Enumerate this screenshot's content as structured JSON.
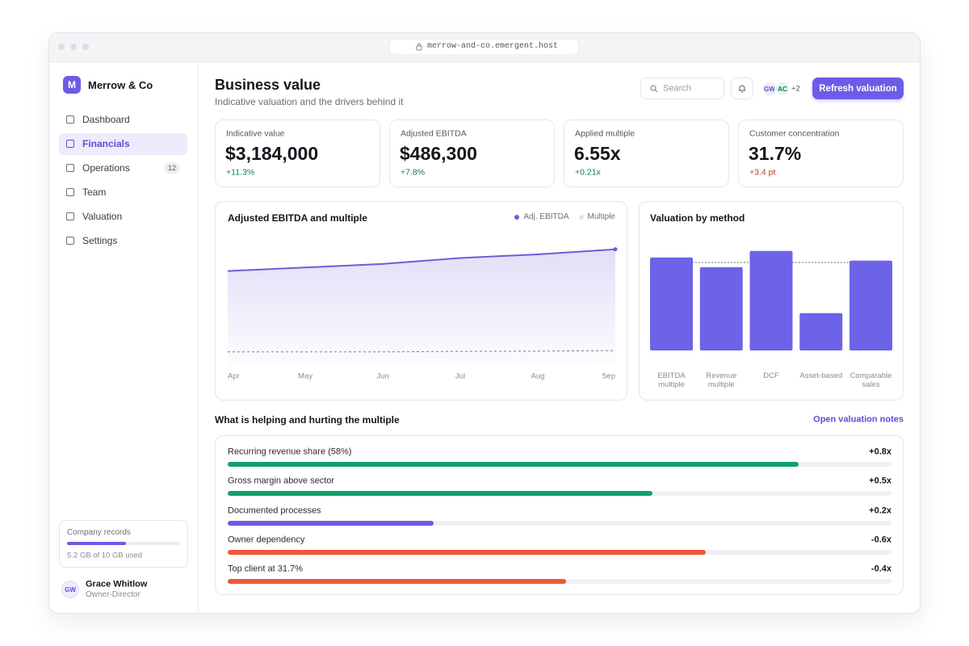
{
  "browser": {
    "url": "merrow-and-co.emergent.host"
  },
  "sidebar": {
    "brand_initial": "M",
    "brand": "Merrow & Co",
    "nav": [
      {
        "label": "Dashboard"
      },
      {
        "label": "Financials",
        "active": true
      },
      {
        "label": "Operations",
        "badge": "12"
      },
      {
        "label": "Team"
      },
      {
        "label": "Valuation"
      },
      {
        "label": "Settings"
      }
    ],
    "storage": {
      "title": "Company records",
      "used": 5.2,
      "total": 10,
      "color": "#6b5ce7",
      "caption": "5.2 GB of 10 GB used"
    },
    "user": {
      "initials": "GW",
      "name": "Grace Whitlow",
      "role": "Owner-Director"
    }
  },
  "header": {
    "title": "Business value",
    "subtitle": "Indicative valuation and the drivers behind it",
    "search_placeholder": "Search",
    "avatars": [
      "GW",
      "AC"
    ],
    "more": "+2",
    "button": "Refresh valuation"
  },
  "kpis": [
    {
      "label": "Indicative value",
      "value": "$3,184,000",
      "delta": "+11.3%",
      "delta_color": "#0f7a52"
    },
    {
      "label": "Adjusted EBITDA",
      "value": "$486,300",
      "delta": "+7.8%",
      "delta_color": "#0f7a52"
    },
    {
      "label": "Applied multiple",
      "value": "6.55x",
      "delta": "+0.21x",
      "delta_color": "#0f7a52"
    },
    {
      "label": "Customer concentration",
      "value": "31.7%",
      "delta": "+3.4 pt",
      "delta_color": "#c0392b"
    }
  ],
  "chart_data": [
    {
      "type": "line",
      "title": "Adjusted EBITDA and multiple",
      "categories": [
        "Apr",
        "May",
        "Jun",
        "Jul",
        "Aug",
        "Sep"
      ],
      "series": [
        {
          "name": "Adj. EBITDA",
          "color": "#6b5fd6",
          "values": [
            395000,
            410000,
            425000,
            450000,
            465000,
            486300
          ]
        },
        {
          "name": "Multiple",
          "color": "#e4e4ea",
          "line_color": "#7d7d8a",
          "axis": "y2",
          "values": [
            6.5,
            6.5,
            6.5,
            6.52,
            6.53,
            6.55
          ]
        }
      ],
      "ylim": [
        0,
        550000
      ],
      "y2lim": [
        6,
        11
      ]
    },
    {
      "type": "bar",
      "title": "Valuation by method",
      "categories": [
        "EBITDA multiple",
        "Revenue multiple",
        "DCF",
        "Asset-based",
        "Comparable sales"
      ],
      "values": [
        3360000,
        3010000,
        3600000,
        1350000,
        3250000
      ],
      "color": "#6c63e8",
      "reference_line": 3184000,
      "ylim": [
        0,
        4000000
      ]
    }
  ],
  "drivers": {
    "title": "What is helping and hurting the multiple",
    "link": "Open valuation notes",
    "items": [
      {
        "label": "Recurring revenue share (58%)",
        "value_label": "+0.8x",
        "fill": 86,
        "color": "#12a06a"
      },
      {
        "label": "Gross margin above sector",
        "value_label": "+0.5x",
        "fill": 64,
        "color": "#12a06a"
      },
      {
        "label": "Documented processes",
        "value_label": "+0.2x",
        "fill": 31,
        "color": "#6b5ce7"
      },
      {
        "label": "Owner dependency",
        "value_label": "-0.6x",
        "fill": 72,
        "color": "#f0553a"
      },
      {
        "label": "Top client at 31.7%",
        "value_label": "-0.4x",
        "fill": 51,
        "color": "#f0553a"
      }
    ]
  }
}
